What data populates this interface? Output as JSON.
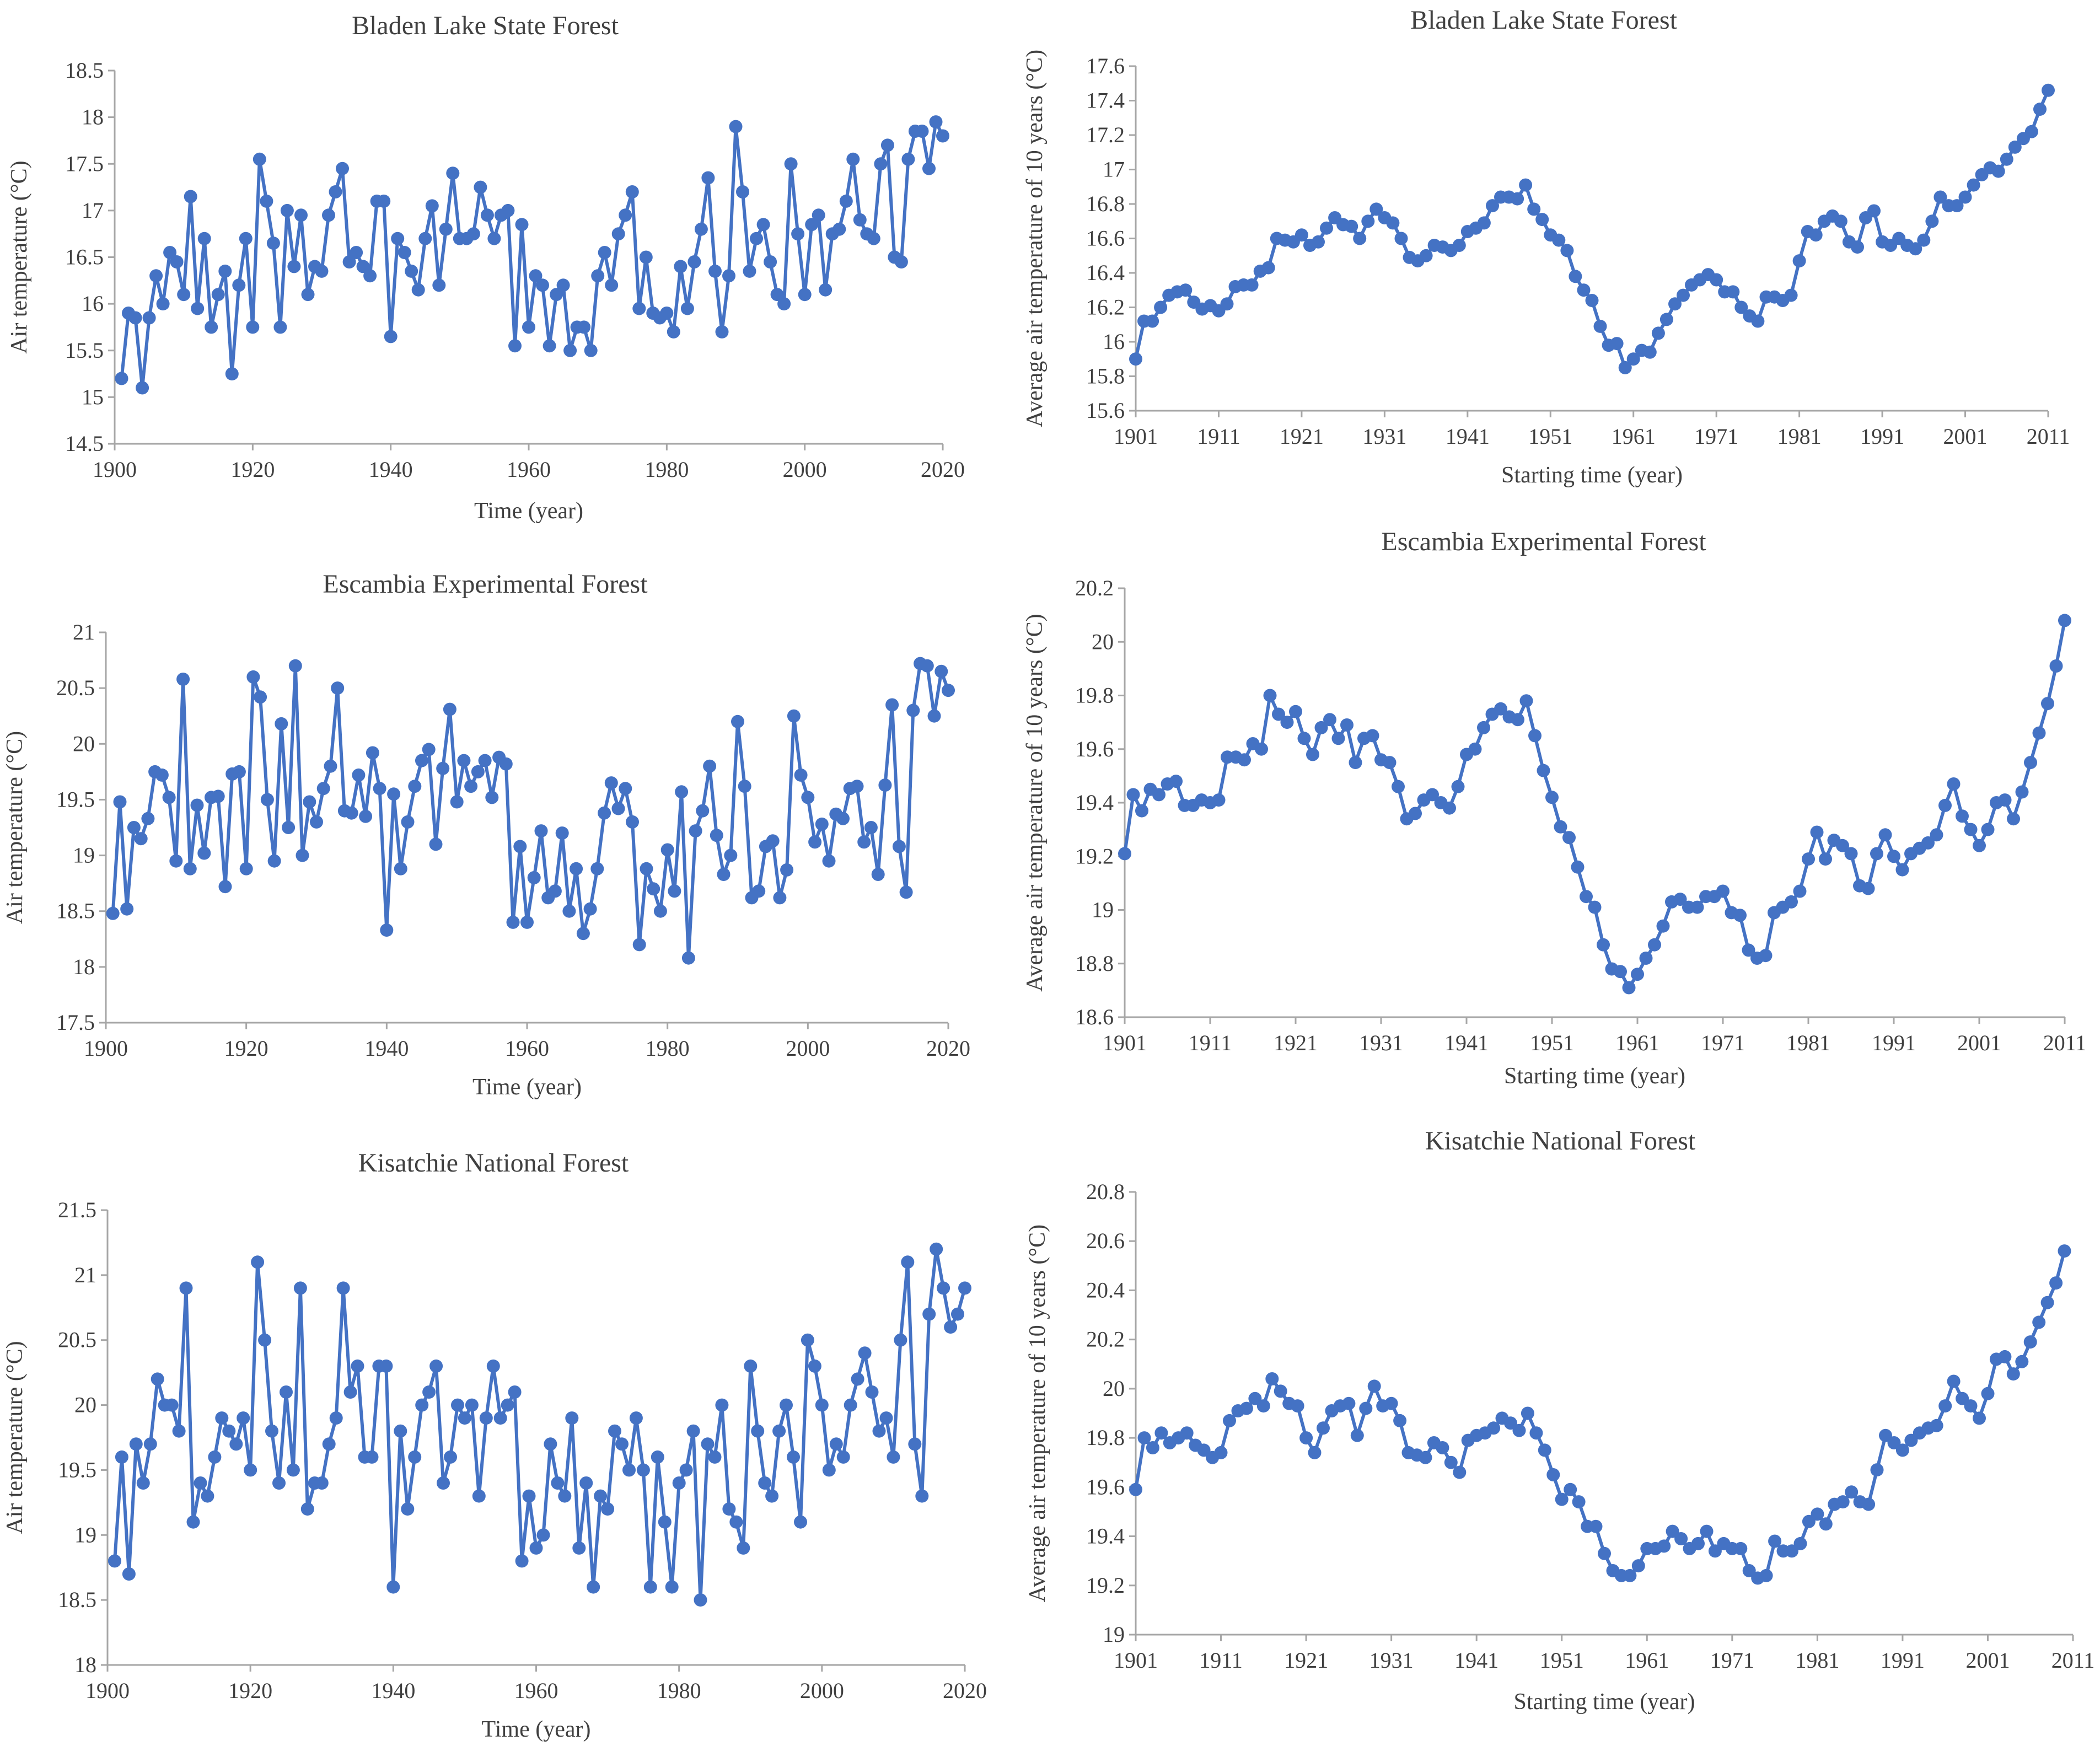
{
  "chart_data": [
    {
      "type": "line",
      "title": "Bladen Lake State Forest",
      "xlabel": "Time (year)",
      "ylabel": "Air temperature (°C)",
      "xlim": [
        1900,
        2020
      ],
      "ylim": [
        14.5,
        18.5
      ],
      "xticks": [
        1900,
        1920,
        1940,
        1960,
        1980,
        2000,
        2020
      ],
      "xtick_labels": [
        "1900",
        "1920",
        "1940",
        "1960",
        "1980",
        "2000",
        "2020"
      ],
      "yticks": [
        14.5,
        15,
        15.5,
        16,
        16.5,
        17,
        17.5,
        18,
        18.5
      ],
      "ytick_labels": [
        "14.5",
        "15",
        "15.5",
        "16",
        "16.5",
        "17",
        "17.5",
        "18",
        "18.5"
      ],
      "x_start": 1901,
      "values": [
        15.2,
        15.9,
        15.85,
        15.1,
        15.85,
        16.3,
        16.0,
        16.55,
        16.45,
        16.1,
        17.15,
        15.95,
        16.7,
        15.75,
        16.1,
        16.35,
        15.25,
        16.2,
        16.7,
        15.75,
        17.55,
        17.1,
        16.65,
        15.75,
        17.0,
        16.4,
        16.95,
        16.1,
        16.4,
        16.35,
        16.95,
        17.2,
        17.45,
        16.45,
        16.55,
        16.4,
        16.3,
        17.1,
        17.1,
        15.65,
        16.7,
        16.55,
        16.35,
        16.15,
        16.7,
        17.05,
        16.2,
        16.8,
        17.4,
        16.7,
        16.7,
        16.75,
        17.25,
        16.95,
        16.7,
        16.95,
        17.0,
        15.55,
        16.85,
        15.75,
        16.3,
        16.2,
        15.55,
        16.1,
        16.2,
        15.5,
        15.75,
        15.75,
        15.5,
        16.3,
        16.55,
        16.2,
        16.75,
        16.95,
        17.2,
        15.95,
        16.5,
        15.9,
        15.85,
        15.9,
        15.7,
        16.4,
        15.95,
        16.45,
        16.8,
        17.35,
        16.35,
        15.7,
        16.3,
        17.9,
        17.2,
        16.35,
        16.7,
        16.85,
        16.45,
        16.1,
        16.0,
        17.5,
        16.75,
        16.1,
        16.85,
        16.95,
        16.15,
        16.75,
        16.8,
        17.1,
        17.55,
        16.9,
        16.75,
        16.7,
        17.5,
        17.7,
        16.5,
        16.45,
        17.55,
        17.85,
        17.85,
        17.45,
        17.95,
        17.8
      ]
    },
    {
      "type": "line",
      "title": "Bladen Lake State Forest",
      "xlabel": "Starting time (year)",
      "ylabel": "Average air temperature of 10 years (°C)",
      "xlim": [
        1901,
        2011
      ],
      "ylim": [
        15.6,
        17.6
      ],
      "xticks": [
        1901,
        1911,
        1921,
        1931,
        1941,
        1951,
        1961,
        1971,
        1981,
        1991,
        2001,
        2011
      ],
      "xtick_labels": [
        "1901",
        "1911",
        "1921",
        "1931",
        "1941",
        "1951",
        "1961",
        "1971",
        "1981",
        "1991",
        "2001",
        "2011"
      ],
      "yticks": [
        15.6,
        15.8,
        16.0,
        16.2,
        16.4,
        16.6,
        16.8,
        17.0,
        17.2,
        17.4,
        17.6
      ],
      "ytick_labels": [
        "15.6",
        "15.8",
        "16",
        "16.2",
        "16.4",
        "16.6",
        "16.8",
        "17",
        "17.2",
        "17.4",
        "17.6"
      ],
      "x_start": 1901,
      "values": [
        15.9,
        16.12,
        16.12,
        16.2,
        16.27,
        16.29,
        16.3,
        16.23,
        16.19,
        16.21,
        16.18,
        16.22,
        16.32,
        16.33,
        16.33,
        16.41,
        16.43,
        16.6,
        16.59,
        16.58,
        16.62,
        16.56,
        16.58,
        16.66,
        16.72,
        16.68,
        16.67,
        16.6,
        16.7,
        16.77,
        16.72,
        16.69,
        16.6,
        16.49,
        16.47,
        16.5,
        16.56,
        16.55,
        16.53,
        16.56,
        16.64,
        16.66,
        16.69,
        16.79,
        16.84,
        16.84,
        16.83,
        16.91,
        16.77,
        16.71,
        16.62,
        16.59,
        16.53,
        16.38,
        16.3,
        16.24,
        16.09,
        15.98,
        15.99,
        15.85,
        15.9,
        15.95,
        15.94,
        16.05,
        16.13,
        16.22,
        16.27,
        16.33,
        16.36,
        16.39,
        16.36,
        16.29,
        16.29,
        16.2,
        16.15,
        16.12,
        16.26,
        16.26,
        16.24,
        16.27,
        16.47,
        16.64,
        16.62,
        16.7,
        16.73,
        16.7,
        16.58,
        16.55,
        16.72,
        16.76,
        16.58,
        16.56,
        16.6,
        16.56,
        16.54,
        16.59,
        16.7,
        16.84,
        16.79,
        16.79,
        16.84,
        16.91,
        16.97,
        17.01,
        16.99,
        17.06,
        17.13,
        17.18,
        17.22,
        17.35,
        17.46
      ]
    },
    {
      "type": "line",
      "title": "Escambia Experimental Forest",
      "xlabel": "Time (year)",
      "ylabel": "Air temperature (°C)",
      "xlim": [
        1900,
        2020
      ],
      "ylim": [
        17.5,
        21
      ],
      "xticks": [
        1900,
        1920,
        1940,
        1960,
        1980,
        2000,
        2020
      ],
      "xtick_labels": [
        "1900",
        "1920",
        "1940",
        "1960",
        "1980",
        "2000",
        "2020"
      ],
      "yticks": [
        17.5,
        18,
        18.5,
        19,
        19.5,
        20,
        20.5,
        21
      ],
      "ytick_labels": [
        "17.5",
        "18",
        "18.5",
        "19",
        "19.5",
        "20",
        "20.5",
        "21"
      ],
      "x_start": 1901,
      "values": [
        18.48,
        19.48,
        18.52,
        19.25,
        19.15,
        19.33,
        19.75,
        19.72,
        19.52,
        18.95,
        20.58,
        18.88,
        19.45,
        19.02,
        19.52,
        19.53,
        18.72,
        19.73,
        19.75,
        18.88,
        20.6,
        20.42,
        19.5,
        18.95,
        20.18,
        19.25,
        20.7,
        19.0,
        19.48,
        19.3,
        19.6,
        19.8,
        20.5,
        19.4,
        19.38,
        19.72,
        19.35,
        19.92,
        19.6,
        18.33,
        19.55,
        18.88,
        19.3,
        19.62,
        19.85,
        19.95,
        19.1,
        19.78,
        20.31,
        19.48,
        19.85,
        19.62,
        19.75,
        19.85,
        19.52,
        19.88,
        19.82,
        18.4,
        19.08,
        18.4,
        18.8,
        19.22,
        18.62,
        18.68,
        19.2,
        18.5,
        18.88,
        18.3,
        18.52,
        18.88,
        19.38,
        19.65,
        19.42,
        19.6,
        19.3,
        18.2,
        18.88,
        18.7,
        18.5,
        19.05,
        18.68,
        19.57,
        18.08,
        19.22,
        19.4,
        19.8,
        19.18,
        18.83,
        19.0,
        20.2,
        19.62,
        18.62,
        18.68,
        19.08,
        19.13,
        18.62,
        18.87,
        20.25,
        19.72,
        19.52,
        19.12,
        19.28,
        18.95,
        19.37,
        19.33,
        19.6,
        19.62,
        19.12,
        19.25,
        18.83,
        19.63,
        20.35,
        19.08,
        18.67,
        20.3,
        20.72,
        20.7,
        20.25,
        20.65,
        20.48
      ]
    },
    {
      "type": "line",
      "title": "Escambia Experimental Forest",
      "xlabel": "Starting time (year)",
      "ylabel": "Average air temperature of 10 years (°C)",
      "xlim": [
        1901,
        2011
      ],
      "ylim": [
        18.6,
        20.2
      ],
      "xticks": [
        1901,
        1911,
        1921,
        1931,
        1941,
        1951,
        1961,
        1971,
        1981,
        1991,
        2001,
        2011
      ],
      "xtick_labels": [
        "1901",
        "1911",
        "1921",
        "1931",
        "1941",
        "1951",
        "1961",
        "1971",
        "1981",
        "1991",
        "2001",
        "2011"
      ],
      "yticks": [
        18.6,
        18.8,
        19.0,
        19.2,
        19.4,
        19.6,
        19.8,
        20.0,
        20.2
      ],
      "ytick_labels": [
        "18.6",
        "18.8",
        "19",
        "19.2",
        "19.4",
        "19.6",
        "19.8",
        "20",
        "20.2"
      ],
      "x_start": 1901,
      "values": [
        19.21,
        19.43,
        19.37,
        19.45,
        19.43,
        19.47,
        19.48,
        19.39,
        19.39,
        19.41,
        19.4,
        19.41,
        19.57,
        19.57,
        19.56,
        19.62,
        19.6,
        19.8,
        19.73,
        19.7,
        19.74,
        19.64,
        19.58,
        19.68,
        19.71,
        19.64,
        19.69,
        19.55,
        19.64,
        19.65,
        19.56,
        19.55,
        19.46,
        19.34,
        19.36,
        19.41,
        19.43,
        19.4,
        19.38,
        19.46,
        19.58,
        19.6,
        19.68,
        19.73,
        19.75,
        19.72,
        19.71,
        19.78,
        19.65,
        19.52,
        19.42,
        19.31,
        19.27,
        19.16,
        19.05,
        19.01,
        18.87,
        18.78,
        18.77,
        18.71,
        18.76,
        18.82,
        18.87,
        18.94,
        19.03,
        19.04,
        19.01,
        19.01,
        19.05,
        19.05,
        19.07,
        18.99,
        18.98,
        18.85,
        18.82,
        18.83,
        18.99,
        19.01,
        19.03,
        19.07,
        19.19,
        19.29,
        19.19,
        19.26,
        19.24,
        19.21,
        19.09,
        19.08,
        19.21,
        19.28,
        19.2,
        19.15,
        19.21,
        19.23,
        19.25,
        19.28,
        19.39,
        19.47,
        19.35,
        19.3,
        19.24,
        19.3,
        19.4,
        19.41,
        19.34,
        19.44,
        19.55,
        19.66,
        19.77,
        19.91,
        20.08
      ]
    },
    {
      "type": "line",
      "title": "Kisatchie National Forest",
      "xlabel": "Time (year)",
      "ylabel": "Air temperature (°C)",
      "xlim": [
        1900,
        2020
      ],
      "ylim": [
        18,
        21.5
      ],
      "xticks": [
        1900,
        1920,
        1940,
        1960,
        1980,
        2000,
        2020
      ],
      "xtick_labels": [
        "1900",
        "1920",
        "1940",
        "1960",
        "1980",
        "2000",
        "2020"
      ],
      "yticks": [
        18,
        18.5,
        19,
        19.5,
        20,
        20.5,
        21,
        21.5
      ],
      "ytick_labels": [
        "18",
        "18.5",
        "19",
        "19.5",
        "20",
        "20.5",
        "21",
        "21.5"
      ],
      "x_start": 1901,
      "values": [
        18.8,
        19.6,
        18.7,
        19.7,
        19.4,
        19.7,
        20.2,
        20.0,
        20.0,
        19.8,
        20.9,
        19.1,
        19.4,
        19.3,
        19.6,
        19.9,
        19.8,
        19.7,
        19.9,
        19.5,
        21.1,
        20.5,
        19.8,
        19.4,
        20.1,
        19.5,
        20.9,
        19.2,
        19.4,
        19.4,
        19.7,
        19.9,
        20.9,
        20.1,
        20.3,
        19.6,
        19.6,
        20.3,
        20.3,
        18.6,
        19.8,
        19.2,
        19.6,
        20.0,
        20.1,
        20.3,
        19.4,
        19.6,
        20.0,
        19.9,
        20.0,
        19.3,
        19.9,
        20.3,
        19.9,
        20.0,
        20.1,
        18.8,
        19.3,
        18.9,
        19.0,
        19.7,
        19.4,
        19.3,
        19.9,
        18.9,
        19.4,
        18.6,
        19.3,
        19.2,
        19.8,
        19.7,
        19.5,
        19.9,
        19.5,
        18.6,
        19.6,
        19.1,
        18.6,
        19.4,
        19.5,
        19.8,
        18.5,
        19.7,
        19.6,
        20.0,
        19.2,
        19.1,
        18.9,
        20.3,
        19.8,
        19.4,
        19.3,
        19.8,
        20.0,
        19.6,
        19.1,
        20.5,
        20.3,
        20.0,
        19.5,
        19.7,
        19.6,
        20.0,
        20.2,
        20.4,
        20.1,
        19.8,
        19.9,
        19.6,
        20.5,
        21.1,
        19.7,
        19.3,
        20.7,
        21.2,
        20.9,
        20.6,
        20.7,
        20.9
      ]
    },
    {
      "type": "line",
      "title": "Kisatchie National Forest",
      "xlabel": "Starting time (year)",
      "ylabel": "Average air temperature of 10 years (°C)",
      "xlim": [
        1901,
        2011
      ],
      "ylim": [
        19.0,
        20.8
      ],
      "xticks": [
        1901,
        1911,
        1921,
        1931,
        1941,
        1951,
        1961,
        1971,
        1981,
        1991,
        2001,
        2011
      ],
      "xtick_labels": [
        "1901",
        "1911",
        "1921",
        "1931",
        "1941",
        "1951",
        "1961",
        "1971",
        "1981",
        "1991",
        "2001",
        "2011"
      ],
      "yticks": [
        19.0,
        19.2,
        19.4,
        19.6,
        19.8,
        20.0,
        20.2,
        20.4,
        20.6,
        20.8
      ],
      "ytick_labels": [
        "19",
        "19.2",
        "19.4",
        "19.6",
        "19.8",
        "20",
        "20.2",
        "20.4",
        "20.6",
        "20.8"
      ],
      "x_start": 1901,
      "values": [
        19.59,
        19.8,
        19.76,
        19.82,
        19.78,
        19.8,
        19.82,
        19.77,
        19.75,
        19.72,
        19.74,
        19.87,
        19.91,
        19.92,
        19.96,
        19.93,
        20.04,
        19.99,
        19.94,
        19.93,
        19.8,
        19.74,
        19.84,
        19.91,
        19.93,
        19.94,
        19.81,
        19.92,
        20.01,
        19.93,
        19.94,
        19.87,
        19.74,
        19.73,
        19.72,
        19.78,
        19.76,
        19.7,
        19.66,
        19.79,
        19.81,
        19.82,
        19.84,
        19.88,
        19.86,
        19.83,
        19.9,
        19.82,
        19.75,
        19.65,
        19.55,
        19.59,
        19.54,
        19.44,
        19.44,
        19.33,
        19.26,
        19.24,
        19.24,
        19.28,
        19.35,
        19.35,
        19.36,
        19.42,
        19.39,
        19.35,
        19.37,
        19.42,
        19.34,
        19.37,
        19.35,
        19.35,
        19.26,
        19.23,
        19.24,
        19.38,
        19.34,
        19.34,
        19.37,
        19.46,
        19.49,
        19.45,
        19.53,
        19.54,
        19.58,
        19.54,
        19.53,
        19.67,
        19.81,
        19.78,
        19.75,
        19.79,
        19.82,
        19.84,
        19.85,
        19.93,
        20.03,
        19.96,
        19.93,
        19.88,
        19.98,
        20.12,
        20.13,
        20.06,
        20.11,
        20.19,
        20.27,
        20.35,
        20.43,
        20.56
      ]
    }
  ]
}
